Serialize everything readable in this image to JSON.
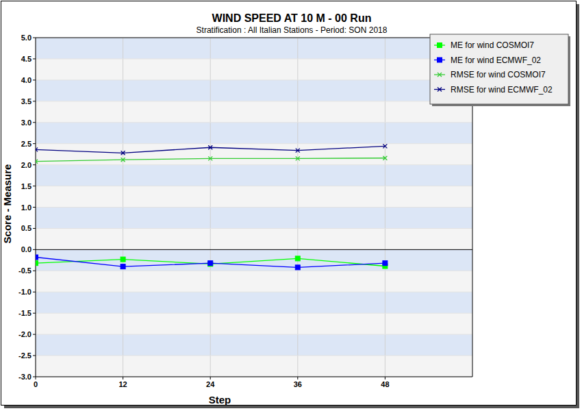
{
  "chart_data": {
    "type": "line",
    "title": "WIND SPEED AT 10 M - 00 Run",
    "subtitle": "Stratification : All Italian Stations - Period: SON 2018",
    "x_label": "Step",
    "y_label": "Score - Measure",
    "x": [
      0,
      12,
      24,
      36,
      48
    ],
    "xlim": [
      0,
      60
    ],
    "xticks": [
      0,
      12,
      24,
      36,
      48
    ],
    "ylim": [
      -3,
      5
    ],
    "yticks": [
      {
        "value": -3,
        "label": "-3.0"
      },
      -2.5,
      {
        "value": -2,
        "label": "-2.0"
      },
      -1.5,
      {
        "value": -1,
        "label": "-1.0"
      },
      -0.5,
      {
        "value": 0,
        "label": "0.0"
      },
      0.5,
      {
        "value": 1,
        "label": "1.0"
      },
      1.5,
      {
        "value": 2,
        "label": "2.0"
      },
      2.5,
      {
        "value": 3,
        "label": "3.0"
      },
      3.5,
      {
        "value": 4,
        "label": "4.0"
      },
      4.5,
      {
        "value": 5,
        "label": "5.0"
      }
    ],
    "grid": true,
    "legend": "upper right",
    "series": [
      {
        "name": "ME for wind COSMOI7",
        "color": "#00ff00",
        "marker": "square",
        "values": [
          -0.32,
          -0.23,
          -0.34,
          -0.21,
          -0.39
        ]
      },
      {
        "name": "ME for wind ECMWF_02",
        "color": "#0000ff",
        "marker": "square",
        "values": [
          -0.18,
          -0.4,
          -0.32,
          -0.42,
          -0.32
        ]
      },
      {
        "name": "RMSE for wind COSMOI7",
        "color": "#33cc33",
        "marker": "x",
        "values": [
          2.08,
          2.12,
          2.15,
          2.15,
          2.16
        ]
      },
      {
        "name": "RMSE for wind ECMWF_02",
        "color": "#000080",
        "marker": "x",
        "values": [
          2.36,
          2.28,
          2.41,
          2.34,
          2.44
        ]
      }
    ]
  }
}
